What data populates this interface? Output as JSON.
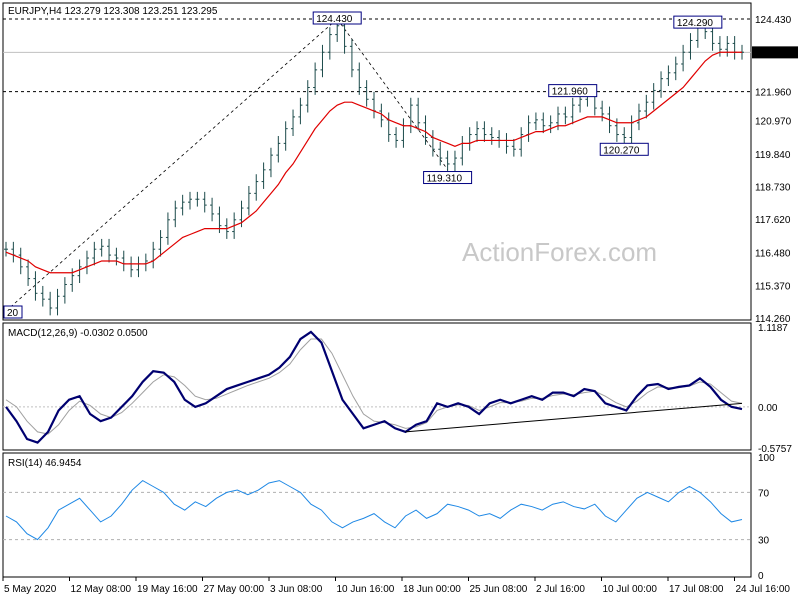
{
  "chart_data": {
    "type": "candlestick",
    "symbol_line": "EURJPY,H4  123.279 123.308 123.251 123.295",
    "watermark": "ActionForex.com",
    "x_tick_labels": [
      "5 May 2020",
      "12 May 08:00",
      "19 May 16:00",
      "27 May 00:00",
      "3 Jun 08:00",
      "10 Jun 16:00",
      "18 Jun 00:00",
      "25 Jun 08:00",
      "2 Jul 16:00",
      "10 Jul 00:00",
      "17 Jul 08:00",
      "24 Jul 16:00"
    ],
    "price_panel": {
      "ylim": [
        114.26,
        124.43
      ],
      "y_tick_labels": [
        "124.430",
        "123.295",
        "121.960",
        "120.970",
        "119.840",
        "118.730",
        "117.620",
        "116.480",
        "115.370",
        "114.260"
      ],
      "price_closes": [
        116.6,
        116.4,
        116.0,
        115.6,
        115.1,
        114.9,
        114.6,
        115.0,
        115.4,
        115.7,
        116.0,
        116.3,
        116.6,
        116.7,
        116.4,
        116.3,
        116.1,
        115.9,
        116.1,
        116.2,
        116.6,
        117.0,
        117.6,
        118.0,
        118.2,
        118.3,
        118.3,
        118.1,
        117.8,
        117.4,
        117.2,
        117.6,
        118.0,
        118.5,
        118.9,
        119.3,
        119.8,
        120.2,
        120.7,
        121.1,
        121.5,
        122.1,
        122.7,
        123.3,
        123.9,
        124.2,
        123.5,
        122.7,
        122.1,
        121.7,
        121.3,
        121.0,
        120.5,
        120.3,
        120.8,
        121.5,
        120.9,
        120.4,
        120.0,
        119.7,
        119.5,
        119.7,
        120.2,
        120.5,
        120.7,
        120.5,
        120.4,
        120.3,
        120.1,
        120.0,
        120.5,
        120.9,
        121.0,
        120.8,
        120.9,
        121.2,
        121.1,
        121.5,
        121.7,
        121.8,
        121.4,
        121.2,
        120.8,
        120.5,
        120.4,
        120.9,
        121.3,
        121.6,
        122.0,
        122.4,
        122.6,
        122.9,
        123.3,
        123.7,
        124.2,
        124.0,
        123.6,
        123.4,
        123.6,
        123.3,
        123.3
      ],
      "ma_values": [
        116.5,
        116.4,
        116.3,
        116.2,
        116.0,
        115.9,
        115.8,
        115.8,
        115.8,
        115.8,
        115.9,
        116.0,
        116.1,
        116.2,
        116.2,
        116.2,
        116.1,
        116.1,
        116.1,
        116.1,
        116.2,
        116.4,
        116.6,
        116.8,
        117.0,
        117.1,
        117.2,
        117.3,
        117.3,
        117.3,
        117.3,
        117.4,
        117.5,
        117.7,
        117.9,
        118.2,
        118.5,
        118.8,
        119.2,
        119.5,
        119.9,
        120.3,
        120.7,
        121.0,
        121.3,
        121.5,
        121.6,
        121.6,
        121.5,
        121.4,
        121.3,
        121.2,
        121.0,
        120.9,
        120.8,
        120.8,
        120.7,
        120.6,
        120.4,
        120.3,
        120.2,
        120.1,
        120.2,
        120.2,
        120.3,
        120.3,
        120.3,
        120.3,
        120.3,
        120.3,
        120.4,
        120.5,
        120.6,
        120.6,
        120.7,
        120.8,
        120.8,
        120.9,
        121.0,
        121.1,
        121.1,
        121.1,
        121.0,
        120.9,
        120.9,
        120.9,
        121.0,
        121.1,
        121.3,
        121.5,
        121.7,
        121.9,
        122.1,
        122.4,
        122.7,
        123.0,
        123.2,
        123.3,
        123.3,
        123.3,
        123.3
      ],
      "annotations": [
        {
          "label": "124.430",
          "price": 124.43,
          "idx": 45
        },
        {
          "label": "119.310",
          "price": 119.31,
          "idx": 60
        },
        {
          "label": "121.960",
          "price": 121.96,
          "idx": 77
        },
        {
          "label": "120.270",
          "price": 120.27,
          "idx": 84
        },
        {
          "label": "124.290",
          "price": 124.29,
          "idx": 94
        },
        {
          "label": "20",
          "price": 114.26,
          "idx": 0
        }
      ],
      "hlines": [
        {
          "price": 124.43,
          "style": "dashed"
        },
        {
          "price": 123.295,
          "style": "solid"
        },
        {
          "price": 121.96,
          "style": "dashed"
        }
      ],
      "current_price": "123.295"
    },
    "macd_panel": {
      "title": "MACD(12,26,9) -0.0302 0.0500",
      "ylim": [
        -0.5757,
        1.1187
      ],
      "y_tick_labels": [
        "1.1187",
        "0.00",
        "-0.5757"
      ],
      "macd_values": [
        0.0,
        -0.2,
        -0.45,
        -0.5,
        -0.35,
        -0.05,
        0.1,
        0.15,
        -0.1,
        -0.2,
        -0.15,
        0.0,
        0.15,
        0.35,
        0.5,
        0.48,
        0.35,
        0.1,
        0.0,
        0.05,
        0.15,
        0.25,
        0.3,
        0.35,
        0.4,
        0.45,
        0.55,
        0.7,
        0.95,
        1.05,
        0.9,
        0.5,
        0.1,
        -0.1,
        -0.3,
        -0.25,
        -0.2,
        -0.3,
        -0.35,
        -0.25,
        -0.2,
        0.05,
        0.0,
        0.05,
        0.0,
        -0.1,
        0.05,
        0.1,
        0.05,
        0.1,
        0.15,
        0.1,
        0.2,
        0.2,
        0.15,
        0.25,
        0.22,
        0.05,
        0.0,
        -0.05,
        0.15,
        0.3,
        0.32,
        0.25,
        0.28,
        0.3,
        0.4,
        0.28,
        0.1,
        0.0,
        -0.03
      ],
      "signal_values": [
        0.1,
        0.0,
        -0.2,
        -0.35,
        -0.38,
        -0.25,
        -0.05,
        0.08,
        0.02,
        -0.1,
        -0.15,
        -0.08,
        0.05,
        0.2,
        0.35,
        0.45,
        0.42,
        0.3,
        0.15,
        0.1,
        0.12,
        0.18,
        0.24,
        0.3,
        0.35,
        0.4,
        0.48,
        0.6,
        0.8,
        0.95,
        0.95,
        0.75,
        0.45,
        0.15,
        -0.1,
        -0.2,
        -0.22,
        -0.25,
        -0.3,
        -0.28,
        -0.22,
        -0.05,
        0.0,
        0.03,
        0.02,
        -0.05,
        0.0,
        0.06,
        0.06,
        0.08,
        0.12,
        0.12,
        0.16,
        0.18,
        0.17,
        0.2,
        0.22,
        0.15,
        0.06,
        0.0,
        0.08,
        0.2,
        0.28,
        0.27,
        0.27,
        0.29,
        0.35,
        0.32,
        0.2,
        0.08,
        0.05
      ]
    },
    "rsi_panel": {
      "title": "RSI(14) 46.9454",
      "ylim": [
        0,
        100
      ],
      "y_tick_labels": [
        "100",
        "70",
        "30",
        "0"
      ],
      "rsi_values": [
        50,
        45,
        35,
        30,
        40,
        55,
        60,
        65,
        55,
        45,
        50,
        60,
        72,
        80,
        75,
        70,
        60,
        55,
        62,
        58,
        65,
        70,
        72,
        68,
        72,
        78,
        80,
        75,
        70,
        60,
        55,
        45,
        40,
        45,
        48,
        52,
        45,
        40,
        50,
        55,
        48,
        52,
        60,
        58,
        55,
        50,
        52,
        48,
        55,
        60,
        58,
        55,
        60,
        62,
        58,
        56,
        60,
        50,
        45,
        55,
        65,
        70,
        66,
        62,
        70,
        75,
        70,
        62,
        52,
        45,
        47
      ]
    }
  }
}
